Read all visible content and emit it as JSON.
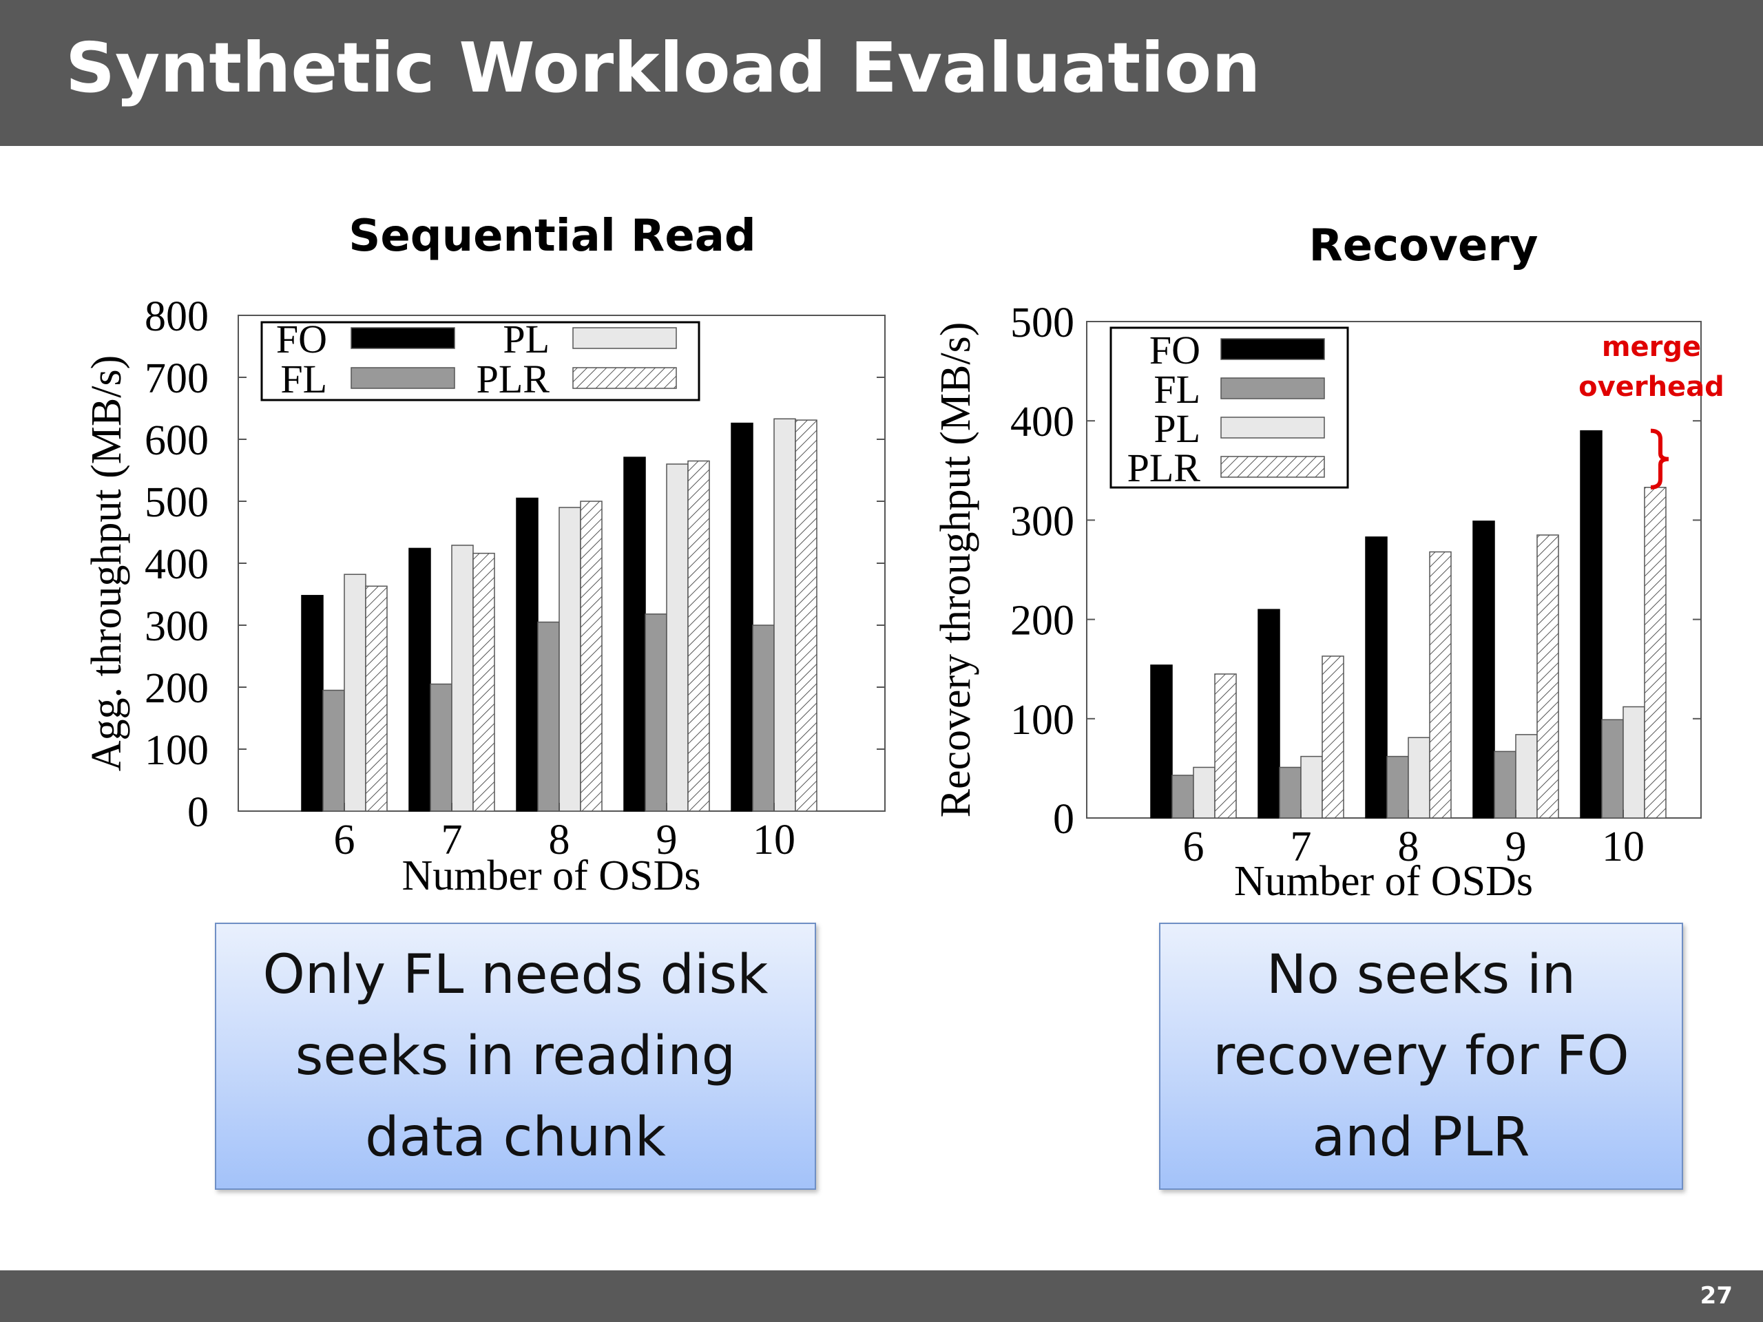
{
  "slide": {
    "title": "Synthetic Workload Evaluation",
    "page_number": "27"
  },
  "callouts": {
    "left": "Only FL needs disk\nseeks in reading\ndata chunk",
    "right": "No seeks in\nrecovery for FO\nand PLR"
  },
  "colors": {
    "FO": "#000000",
    "FL": "#999999",
    "PL": "#e8e8e8",
    "PLR": "hatched",
    "annotation": "#e00000"
  },
  "chart_data": [
    {
      "type": "bar",
      "title": "Sequential Read",
      "xlabel": "Number of OSDs",
      "ylabel": "Agg. throughput (MB/s)",
      "categories": [
        "6",
        "7",
        "8",
        "9",
        "10"
      ],
      "ylim": [
        0,
        800
      ],
      "yticks": [
        "0",
        "100",
        "200",
        "300",
        "400",
        "500",
        "600",
        "700",
        "800"
      ],
      "legend_position": "top-left",
      "series": [
        {
          "name": "FO",
          "values": [
            348,
            424,
            505,
            571,
            626
          ]
        },
        {
          "name": "FL",
          "values": [
            195,
            205,
            305,
            318,
            300
          ]
        },
        {
          "name": "PL",
          "values": [
            382,
            429,
            490,
            560,
            633
          ]
        },
        {
          "name": "PLR",
          "values": [
            363,
            416,
            500,
            565,
            631
          ]
        }
      ]
    },
    {
      "type": "bar",
      "title": "Recovery",
      "xlabel": "Number of OSDs",
      "ylabel": "Recovery throughput (MB/s)",
      "categories": [
        "6",
        "7",
        "8",
        "9",
        "10"
      ],
      "ylim": [
        0,
        500
      ],
      "yticks": [
        "0",
        "100",
        "200",
        "300",
        "400",
        "500"
      ],
      "legend_position": "top-left",
      "annotation": "merge\noverhead",
      "series": [
        {
          "name": "FO",
          "values": [
            154,
            210,
            283,
            299,
            390
          ]
        },
        {
          "name": "FL",
          "values": [
            43,
            51,
            62,
            67,
            99
          ]
        },
        {
          "name": "PL",
          "values": [
            51,
            62,
            81,
            84,
            112
          ]
        },
        {
          "name": "PLR",
          "values": [
            145,
            163,
            268,
            285,
            333
          ]
        }
      ]
    }
  ]
}
